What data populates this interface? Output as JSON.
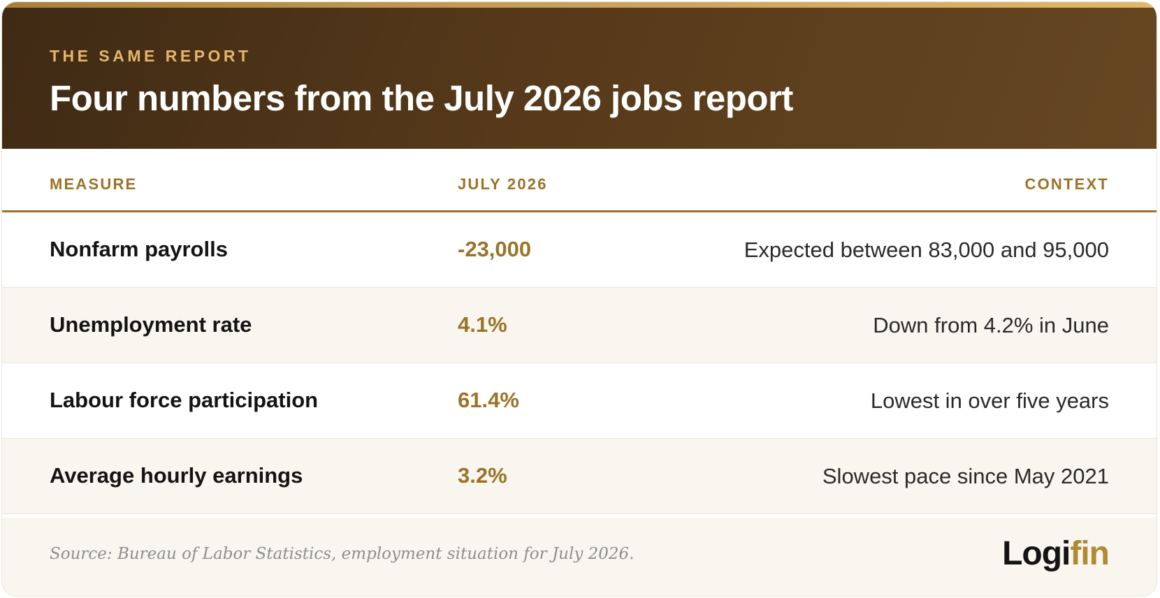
{
  "header": {
    "eyebrow": "THE SAME REPORT",
    "title": "Four numbers from the July 2026 jobs report"
  },
  "table": {
    "columns": [
      "MEASURE",
      "JULY 2026",
      "CONTEXT"
    ],
    "rows": [
      {
        "measure": "Nonfarm payrolls",
        "value": "-23,000",
        "context": "Expected between 83,000 and 95,000"
      },
      {
        "measure": "Unemployment rate",
        "value": "4.1%",
        "context": "Down from 4.2% in June"
      },
      {
        "measure": "Labour force participation",
        "value": "61.4%",
        "context": "Lowest in over five years"
      },
      {
        "measure": "Average hourly earnings",
        "value": "3.2%",
        "context": "Slowest pace since May 2021"
      }
    ]
  },
  "footer": {
    "source": "Source: Bureau of Labor Statistics, employment situation for July 2026.",
    "logo_part1": "Logi",
    "logo_part2": "fin"
  },
  "colors": {
    "accent": "#9a7326",
    "header_dark": "#3f2a14",
    "eyebrow": "#e7b56a"
  }
}
